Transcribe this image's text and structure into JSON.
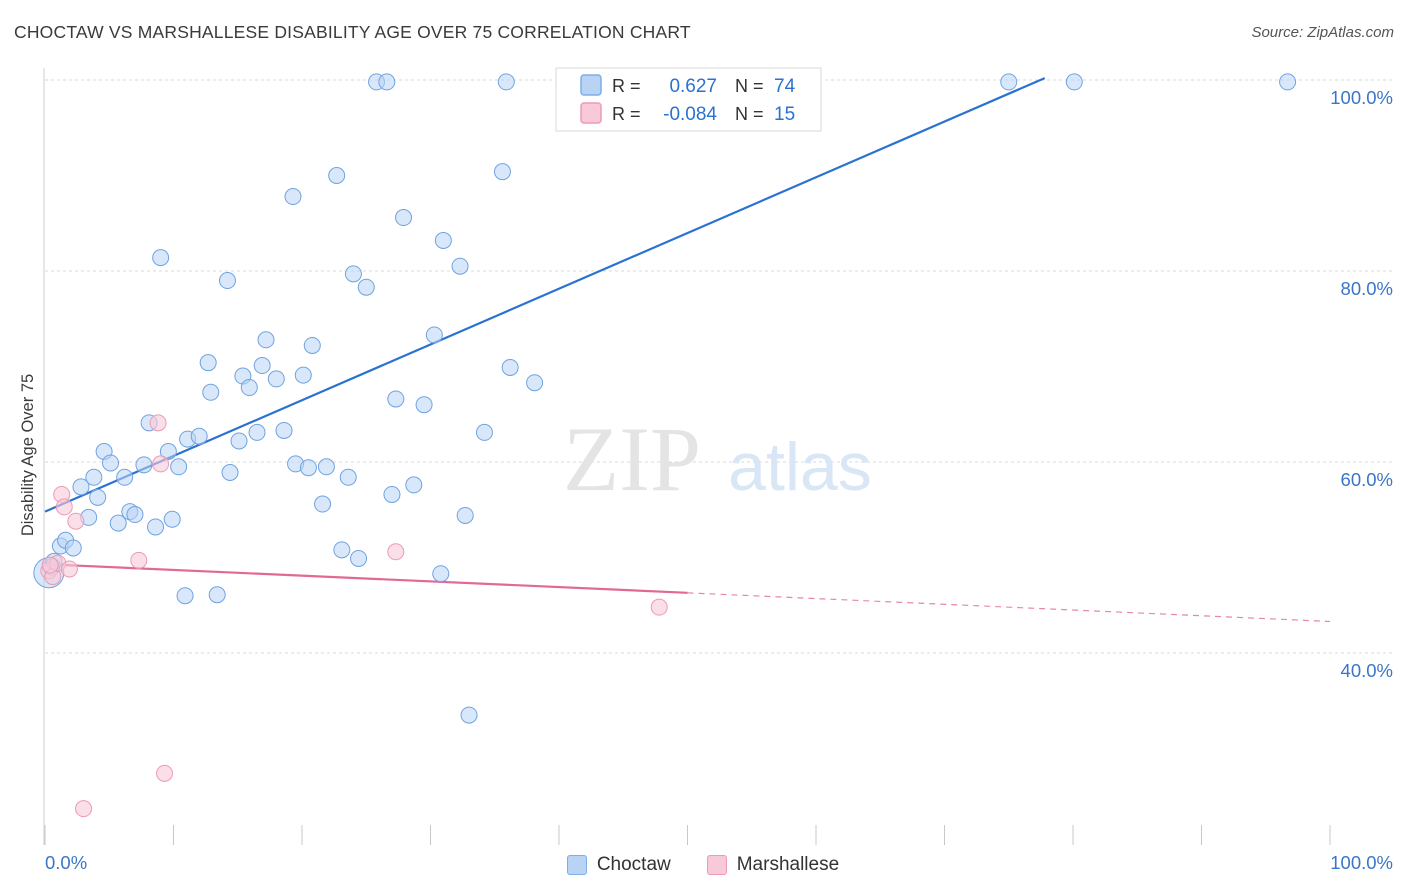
{
  "title": "CHOCTAW VS MARSHALLESE DISABILITY AGE OVER 75 CORRELATION CHART",
  "source": "Source: ZipAtlas.com",
  "watermark": {
    "zip": "ZIP",
    "atlas": "atlas"
  },
  "colors": {
    "choctaw_fill": "#b9d3f5",
    "choctaw_stroke": "#6fa3e0",
    "choctaw_line": "#2a72d0",
    "marshallese_fill": "#f8c9d8",
    "marshallese_stroke": "#ec9ab5",
    "marshallese_line": "#e06a95",
    "axis_label": "#3a76c8",
    "grid": "#d9d9d9"
  },
  "legend_top": {
    "rows": [
      {
        "r_label": "R =",
        "r_value": "0.627",
        "n_label": "N =",
        "n_value": "74"
      },
      {
        "r_label": "R =",
        "r_value": "-0.084",
        "n_label": "N =",
        "n_value": "15"
      }
    ]
  },
  "legend_bottom": {
    "choctaw": "Choctaw",
    "marshallese": "Marshallese"
  },
  "chart_data": {
    "type": "scatter",
    "title": "CHOCTAW VS MARSHALLESE DISABILITY AGE OVER 75 CORRELATION CHART",
    "xlabel": "",
    "ylabel": "Disability Age Over 75",
    "xlim": [
      0,
      100
    ],
    "ylim": [
      20,
      102
    ],
    "x_tick_labels": [
      "0.0%",
      "100.0%"
    ],
    "y_ticks": [
      40,
      60,
      80,
      100
    ],
    "y_tick_labels": [
      "40.0%",
      "60.0%",
      "80.0%",
      "100.0%"
    ],
    "grid": true,
    "legend_placement": "top-center",
    "series": [
      {
        "name": "Choctaw",
        "r": 0.627,
        "n": 74,
        "trend": {
          "x": [
            0,
            77.8
          ],
          "y": [
            54.8,
            100.2
          ]
        },
        "points": [
          [
            0.3,
            48.4
          ],
          [
            0.5,
            49.0
          ],
          [
            0.7,
            49.6
          ],
          [
            1.2,
            51.2
          ],
          [
            1.6,
            51.8
          ],
          [
            2.2,
            51.0
          ],
          [
            2.8,
            57.4
          ],
          [
            3.4,
            54.2
          ],
          [
            3.8,
            58.4
          ],
          [
            4.1,
            56.3
          ],
          [
            4.6,
            61.1
          ],
          [
            5.1,
            59.9
          ],
          [
            5.7,
            53.6
          ],
          [
            6.2,
            58.4
          ],
          [
            6.6,
            54.8
          ],
          [
            7.0,
            54.5
          ],
          [
            7.7,
            59.7
          ],
          [
            8.1,
            64.1
          ],
          [
            8.6,
            53.2
          ],
          [
            9.0,
            81.4
          ],
          [
            9.6,
            61.1
          ],
          [
            9.9,
            54.0
          ],
          [
            10.4,
            59.5
          ],
          [
            10.9,
            46.0
          ],
          [
            11.1,
            62.4
          ],
          [
            12.0,
            62.7
          ],
          [
            12.7,
            70.4
          ],
          [
            12.9,
            67.3
          ],
          [
            13.4,
            46.1
          ],
          [
            14.2,
            79.0
          ],
          [
            14.4,
            58.9
          ],
          [
            15.1,
            62.2
          ],
          [
            15.4,
            69.0
          ],
          [
            15.9,
            67.8
          ],
          [
            16.5,
            63.1
          ],
          [
            16.9,
            70.1
          ],
          [
            17.2,
            72.8
          ],
          [
            18.0,
            68.7
          ],
          [
            18.6,
            63.3
          ],
          [
            19.3,
            87.8
          ],
          [
            19.5,
            59.8
          ],
          [
            20.1,
            69.1
          ],
          [
            20.5,
            59.4
          ],
          [
            20.8,
            72.2
          ],
          [
            21.6,
            55.6
          ],
          [
            21.9,
            59.5
          ],
          [
            22.7,
            90.0
          ],
          [
            23.1,
            50.8
          ],
          [
            23.6,
            58.4
          ],
          [
            24.0,
            79.7
          ],
          [
            24.4,
            49.9
          ],
          [
            25.0,
            78.3
          ],
          [
            25.8,
            99.8
          ],
          [
            26.6,
            99.8
          ],
          [
            27.0,
            56.6
          ],
          [
            27.3,
            66.6
          ],
          [
            27.9,
            85.6
          ],
          [
            28.7,
            57.6
          ],
          [
            29.5,
            66.0
          ],
          [
            30.3,
            73.3
          ],
          [
            30.8,
            48.3
          ],
          [
            31.0,
            83.2
          ],
          [
            32.3,
            80.5
          ],
          [
            32.7,
            54.4
          ],
          [
            33.0,
            33.5
          ],
          [
            34.2,
            63.1
          ],
          [
            35.6,
            90.4
          ],
          [
            35.9,
            99.8
          ],
          [
            36.2,
            69.9
          ],
          [
            38.1,
            68.3
          ],
          [
            43.7,
            99.8
          ],
          [
            75.0,
            99.8
          ],
          [
            80.1,
            99.8
          ],
          [
            96.7,
            99.8
          ]
        ]
      },
      {
        "name": "Marshallese",
        "r": -0.084,
        "n": 15,
        "trend": {
          "x": [
            0,
            100
          ],
          "y": [
            49.3,
            43.3
          ],
          "solid_until_x": 50
        },
        "points": [
          [
            0.3,
            48.6
          ],
          [
            0.6,
            48.0
          ],
          [
            1.0,
            49.4
          ],
          [
            1.3,
            56.6
          ],
          [
            1.5,
            55.3
          ],
          [
            1.9,
            48.8
          ],
          [
            2.4,
            53.8
          ],
          [
            3.0,
            23.7
          ],
          [
            7.3,
            49.7
          ],
          [
            8.8,
            64.1
          ],
          [
            9.0,
            59.8
          ],
          [
            9.3,
            27.4
          ],
          [
            27.3,
            50.6
          ],
          [
            47.8,
            44.8
          ],
          [
            0.4,
            49.2
          ]
        ]
      }
    ]
  }
}
